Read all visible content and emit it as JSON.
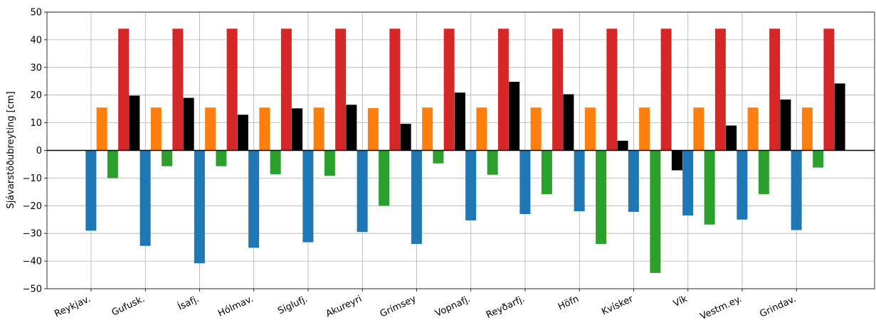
{
  "chart_data": {
    "type": "bar",
    "ylabel": "Sjávarstöðubreyting [cm]",
    "ylim": [
      -50,
      50
    ],
    "yticks": [
      -50,
      -40,
      -30,
      -20,
      -10,
      0,
      10,
      20,
      30,
      40,
      50
    ],
    "ytick_labels": [
      "−50",
      "−40",
      "−30",
      "−20",
      "−10",
      "0",
      "10",
      "20",
      "30",
      "40",
      "50"
    ],
    "grid": true,
    "categories": [
      "Reykjav.",
      "Gufusk.",
      "Ísafj.",
      "Hólmav.",
      "Siglufj.",
      "Akureyri",
      "Grímsey",
      "Vopnafj.",
      "Reyðarfj.",
      "Höfn",
      "Kvísker",
      "Vík",
      "Vestm.ey.",
      "Grindav."
    ],
    "series": [
      {
        "color": "#1f77b4",
        "values": [
          -29,
          -34.5,
          -40.8,
          -35.2,
          -33.2,
          -29.5,
          -33.8,
          -25.3,
          -23,
          -22,
          -22.2,
          -23.5,
          -25,
          -28.8
        ]
      },
      {
        "color": "#2ca02c",
        "values": [
          -10,
          -5.7,
          -5.7,
          -8.6,
          -9.2,
          -20,
          -4.7,
          -8.8,
          -15.8,
          -33.8,
          -44.3,
          -26.8,
          -15.8,
          -6.2
        ]
      },
      {
        "color": "#ff7f0e",
        "values": [
          15.5,
          15.5,
          15.5,
          15.5,
          15.5,
          15.3,
          15.5,
          15.5,
          15.5,
          15.5,
          15.5,
          15.5,
          15.5,
          15.5
        ]
      },
      {
        "color": "#d62728",
        "values": [
          44,
          44,
          44,
          44,
          44,
          44,
          44,
          44,
          44,
          44,
          44,
          44,
          44,
          44
        ]
      },
      {
        "color": "#000000",
        "values": [
          19.8,
          19,
          12.9,
          15.2,
          16.5,
          9.6,
          20.9,
          24.8,
          20.3,
          3.5,
          -7.2,
          9,
          18.4,
          24.2
        ]
      }
    ]
  }
}
